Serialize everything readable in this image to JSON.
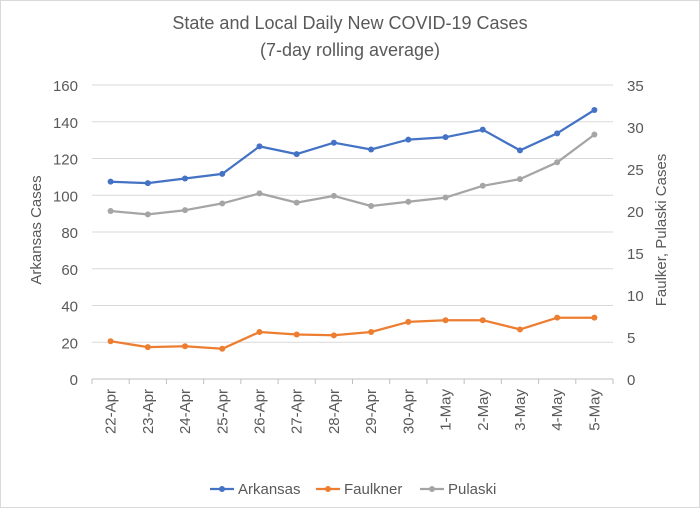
{
  "chart_data": {
    "type": "line",
    "title": "State and Local Daily New COVID-19 Cases",
    "subtitle": "(7-day rolling average)",
    "ylabel": "Arkansas Cases",
    "y2label": "Faulker, Pulaski Cases",
    "ylim": [
      0,
      160
    ],
    "yticks": [
      0,
      20,
      40,
      60,
      80,
      100,
      120,
      140,
      160
    ],
    "y2lim": [
      0,
      35
    ],
    "y2ticks": [
      0,
      5,
      10,
      15,
      20,
      25,
      30,
      35
    ],
    "categories": [
      "22-Apr",
      "23-Apr",
      "24-Apr",
      "25-Apr",
      "26-Apr",
      "27-Apr",
      "28-Apr",
      "29-Apr",
      "30-Apr",
      "1-May",
      "2-May",
      "3-May",
      "4-May",
      "5-May"
    ],
    "grid": true,
    "legend_position": "bottom",
    "series": [
      {
        "name": "Arkansas",
        "axis": "left",
        "color": "#4472C4",
        "values": [
          107.4,
          106.6,
          109.1,
          111.6,
          126.6,
          122.4,
          128.6,
          124.9,
          130.3,
          131.6,
          135.7,
          124.4,
          133.7,
          146.4
        ]
      },
      {
        "name": "Faulkner",
        "axis": "right",
        "color": "#ED7D31",
        "values": [
          4.5,
          3.8,
          3.9,
          3.6,
          5.6,
          5.3,
          5.2,
          5.6,
          6.8,
          7.0,
          7.0,
          5.9,
          7.3,
          7.3
        ]
      },
      {
        "name": "Pulaski",
        "axis": "right",
        "color": "#A5A5A5",
        "values": [
          20.0,
          19.6,
          20.1,
          20.9,
          22.1,
          21.0,
          21.8,
          20.6,
          21.1,
          21.6,
          23.0,
          23.8,
          25.8,
          29.1
        ]
      }
    ]
  }
}
